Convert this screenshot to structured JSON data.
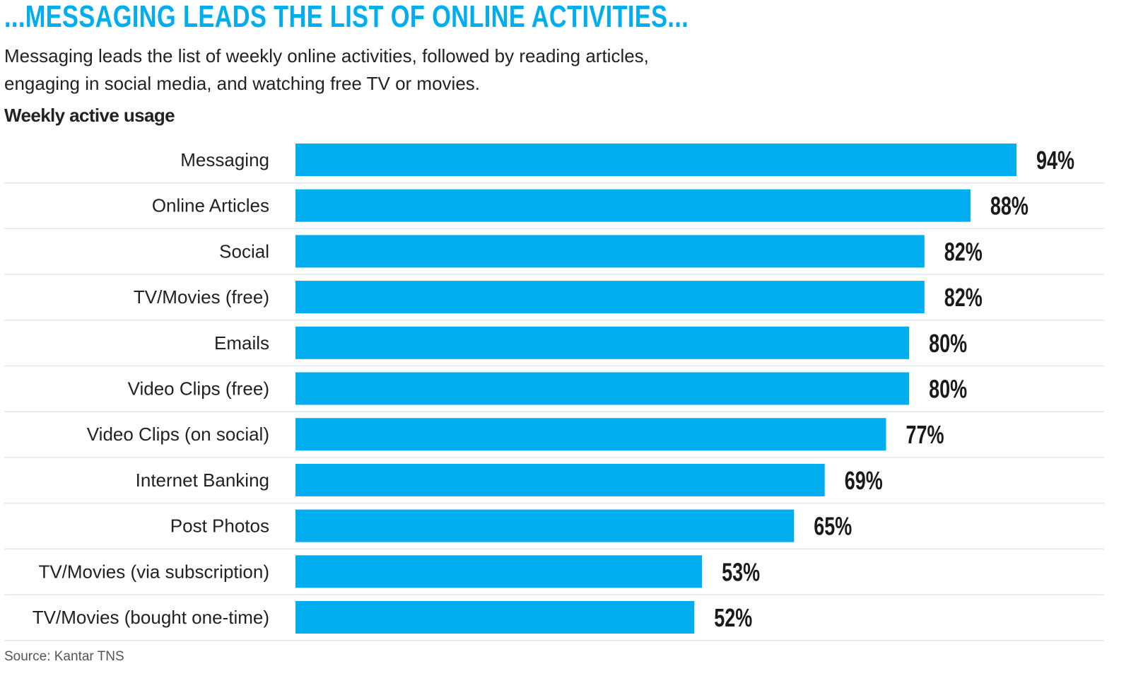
{
  "header": {
    "headline": "...MESSAGING LEADS THE LIST OF ONLINE ACTIVITIES...",
    "subtitle": "Messaging leads the list of weekly online activities, followed by reading articles, engaging in social media, and watching free TV or movies.",
    "usage_label": "Weekly active usage"
  },
  "footer": {
    "source": "Source: Kantar TNS"
  },
  "colors": {
    "bar": "#00aeef",
    "divider": "#dfe6ea",
    "headline": "#00aeef"
  },
  "chart_data": {
    "type": "bar",
    "orientation": "horizontal",
    "title": "...MESSAGING LEADS THE LIST OF ONLINE ACTIVITIES...",
    "categories": [
      "Messaging",
      "Online Articles",
      "Social",
      "TV/Movies (free)",
      "Emails",
      "Video Clips (free)",
      "Video Clips (on social)",
      "Internet Banking",
      "Post Photos",
      "TV/Movies (via subscription)",
      "TV/Movies (bought one-time)"
    ],
    "values": [
      94,
      88,
      82,
      82,
      80,
      80,
      77,
      69,
      65,
      53,
      52
    ],
    "value_labels": [
      "94%",
      "88%",
      "82%",
      "82%",
      "80%",
      "80%",
      "77%",
      "69%",
      "65%",
      "53%",
      "52%"
    ],
    "unit": "%",
    "xlim": [
      0,
      100
    ],
    "grid": false,
    "legend": "none"
  }
}
